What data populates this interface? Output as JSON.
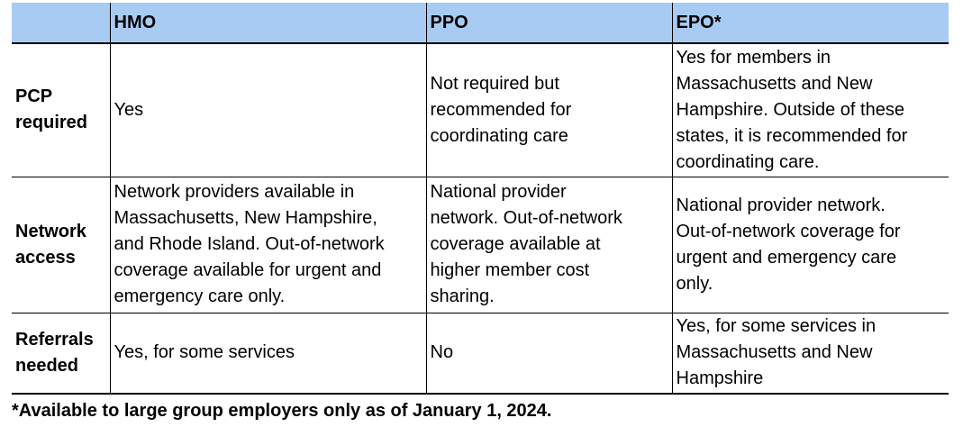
{
  "colors": {
    "header_bg": "#A8CBF4",
    "border": "#000000",
    "text": "#000000"
  },
  "table": {
    "columns": [
      "",
      "HMO",
      "PPO",
      "EPO*"
    ],
    "rows": [
      {
        "cells": [
          "PCP\nrequired",
          "Yes",
          "Not required but\nrecommended for\ncoordinating care",
          "Yes for members in\nMassachusetts and New\nHampshire. Outside of these\nstates, it is recommended for\ncoordinating care."
        ]
      },
      {
        "cells": [
          "Network\naccess",
          "Network providers available in\nMassachusetts, New Hampshire,\nand Rhode Island. Out-of-network\ncoverage available for urgent and\nemergency care only.",
          "National provider\nnetwork. Out-of-network\ncoverage available at\nhigher member cost\nsharing.",
          "National provider network.\nOut-of-network coverage for\nurgent and emergency care\nonly."
        ]
      },
      {
        "cells": [
          "Referrals\nneeded",
          "Yes, for some services",
          "No",
          "Yes, for some services in\nMassachusetts and New\nHampshire"
        ]
      }
    ]
  },
  "footnote": "*Available to large group employers only as of January 1, 2024."
}
